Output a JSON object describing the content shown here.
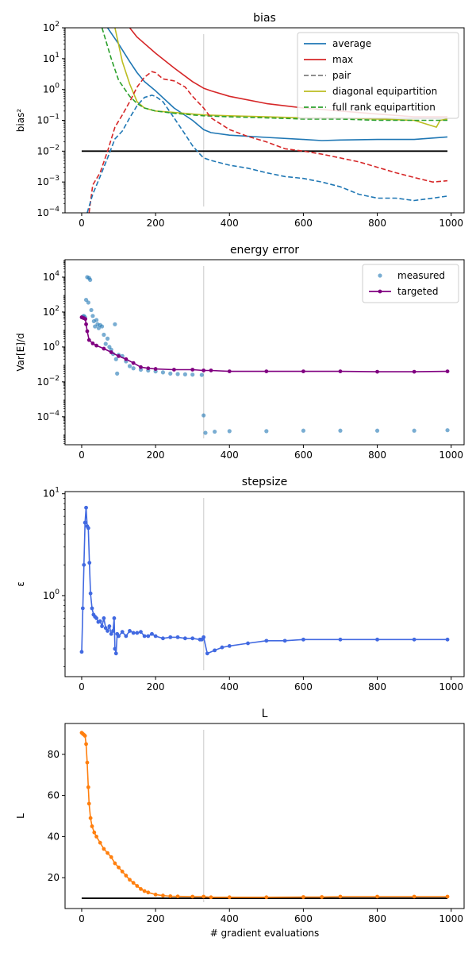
{
  "chart_data": [
    {
      "type": "line",
      "title": "bias",
      "ylabel": "bias²",
      "xlabel": "",
      "yscale": "log",
      "xlim": [
        -45,
        1035
      ],
      "ylim": [
        0.0001,
        100
      ],
      "x_ticks": [
        0,
        200,
        400,
        600,
        800,
        1000
      ],
      "y_ticks": [
        {
          "value": 0.0001,
          "base": "10",
          "exp": "−4"
        },
        {
          "value": 0.001,
          "base": "10",
          "exp": "−3"
        },
        {
          "value": 0.01,
          "base": "10",
          "exp": "−2"
        },
        {
          "value": 0.1,
          "base": "10",
          "exp": "−1"
        },
        {
          "value": 1,
          "base": "10",
          "exp": "0"
        },
        {
          "value": 10,
          "base": "10",
          "exp": "1"
        },
        {
          "value": 100,
          "base": "10",
          "exp": "2"
        }
      ],
      "vline_x": 330,
      "hline_y": 0.01,
      "legend_position": "top-right",
      "series": [
        {
          "name": "average",
          "color": "#1f77b4",
          "dash": "solid",
          "x": [
            70,
            100,
            130,
            150,
            170,
            200,
            250,
            300,
            330,
            350,
            400,
            500,
            600,
            650,
            700,
            800,
            900,
            990
          ],
          "y": [
            100,
            30,
            8,
            3.5,
            1.8,
            0.9,
            0.25,
            0.1,
            0.05,
            0.04,
            0.033,
            0.028,
            0.024,
            0.022,
            0.023,
            0.024,
            0.024,
            0.029
          ]
        },
        {
          "name": "max",
          "color": "#d62728",
          "dash": "solid",
          "x": [
            130,
            150,
            200,
            250,
            300,
            330,
            350,
            400,
            500,
            600,
            700,
            800,
            900,
            990
          ],
          "y": [
            100,
            50,
            15,
            5,
            1.8,
            1.1,
            0.9,
            0.6,
            0.35,
            0.25,
            0.2,
            0.16,
            0.13,
            0.13
          ]
        },
        {
          "name": "pair",
          "color": "#7f7f7f",
          "dash": "dashed",
          "x": [],
          "y": []
        },
        {
          "name": "diagonal equipartition",
          "color": "#bcbd22",
          "dash": "solid",
          "x": [
            90,
            110,
            130,
            150,
            170,
            200,
            250,
            300,
            330,
            400,
            500,
            600,
            700,
            800,
            900,
            960,
            970,
            990
          ],
          "y": [
            100,
            8,
            1.5,
            0.4,
            0.25,
            0.2,
            0.18,
            0.16,
            0.15,
            0.14,
            0.13,
            0.12,
            0.12,
            0.11,
            0.1,
            0.06,
            0.1,
            0.11
          ]
        },
        {
          "name": "full rank equipartition",
          "color": "#2ca02c",
          "dash": "dashed",
          "x": [
            55,
            80,
            100,
            130,
            150,
            170,
            200,
            250,
            300,
            330,
            400,
            500,
            600,
            700,
            800,
            900,
            990
          ],
          "y": [
            100,
            10,
            2,
            0.6,
            0.35,
            0.25,
            0.2,
            0.17,
            0.15,
            0.14,
            0.13,
            0.12,
            0.11,
            0.11,
            0.1,
            0.1,
            0.1
          ]
        },
        {
          "name": "",
          "color": "#d62728",
          "dash": "dashed",
          "x": [
            20,
            30,
            50,
            70,
            90,
            110,
            130,
            150,
            170,
            190,
            200,
            220,
            250,
            280,
            300,
            330,
            350,
            400,
            450,
            500,
            550,
            600,
            650,
            700,
            750,
            800,
            850,
            900,
            950,
            990
          ],
          "y": [
            0.0001,
            0.0008,
            0.002,
            0.01,
            0.06,
            0.15,
            0.4,
            1.2,
            2.5,
            3.8,
            3.5,
            2.2,
            1.9,
            1.2,
            0.6,
            0.25,
            0.12,
            0.05,
            0.03,
            0.02,
            0.012,
            0.01,
            0.008,
            0.006,
            0.0045,
            0.003,
            0.002,
            0.0014,
            0.001,
            0.0011
          ]
        },
        {
          "name": "",
          "color": "#1f77b4",
          "dash": "dashed",
          "x": [
            15,
            30,
            50,
            70,
            90,
            110,
            130,
            150,
            170,
            190,
            200,
            220,
            250,
            280,
            300,
            320,
            330,
            350,
            400,
            450,
            500,
            550,
            600,
            650,
            700,
            750,
            800,
            850,
            900,
            950,
            990
          ],
          "y": [
            0.0001,
            0.0004,
            0.0015,
            0.006,
            0.025,
            0.045,
            0.12,
            0.3,
            0.55,
            0.65,
            0.6,
            0.4,
            0.12,
            0.035,
            0.015,
            0.008,
            0.006,
            0.005,
            0.0035,
            0.0028,
            0.002,
            0.0015,
            0.0013,
            0.001,
            0.0007,
            0.0004,
            0.0003,
            0.0003,
            0.00025,
            0.0003,
            0.00035
          ]
        }
      ]
    },
    {
      "type": "scatter",
      "title": "energy error",
      "ylabel": "Var[E]/d",
      "xlabel": "",
      "yscale": "log",
      "xlim": [
        -45,
        1035
      ],
      "ylim": [
        2.5e-06,
        100000
      ],
      "x_ticks": [
        0,
        200,
        400,
        600,
        800,
        1000
      ],
      "y_ticks": [
        {
          "value": 0.0001,
          "base": "10",
          "exp": "−4"
        },
        {
          "value": 0.01,
          "base": "10",
          "exp": "−2"
        },
        {
          "value": 1,
          "base": "10",
          "exp": "0"
        },
        {
          "value": 100,
          "base": "10",
          "exp": "2"
        },
        {
          "value": 10000,
          "base": "10",
          "exp": "4"
        }
      ],
      "vline_x": 330,
      "legend_position": "top-right",
      "series": [
        {
          "name": "measured",
          "color": "#1f77b4",
          "style": "points",
          "points": [
            [
              3,
              55
            ],
            [
              6,
              60
            ],
            [
              9,
              50
            ],
            [
              12,
              500
            ],
            [
              15,
              10000
            ],
            [
              18,
              350
            ],
            [
              20,
              9000
            ],
            [
              23,
              7000
            ],
            [
              26,
              130
            ],
            [
              30,
              60
            ],
            [
              33,
              30
            ],
            [
              36,
              15
            ],
            [
              40,
              35
            ],
            [
              43,
              20
            ],
            [
              46,
              12
            ],
            [
              50,
              18
            ],
            [
              55,
              15
            ],
            [
              60,
              5
            ],
            [
              65,
              1.5
            ],
            [
              70,
              3
            ],
            [
              75,
              1
            ],
            [
              80,
              0.7
            ],
            [
              85,
              0.4
            ],
            [
              90,
              20
            ],
            [
              93,
              0.2
            ],
            [
              96,
              0.03
            ],
            [
              100,
              0.35
            ],
            [
              110,
              0.3
            ],
            [
              120,
              0.15
            ],
            [
              130,
              0.08
            ],
            [
              140,
              0.06
            ],
            [
              160,
              0.05
            ],
            [
              180,
              0.045
            ],
            [
              200,
              0.04
            ],
            [
              220,
              0.035
            ],
            [
              240,
              0.03
            ],
            [
              260,
              0.028
            ],
            [
              280,
              0.027
            ],
            [
              300,
              0.026
            ],
            [
              325,
              0.025
            ],
            [
              330,
              0.00012
            ],
            [
              335,
              1.2e-05
            ],
            [
              360,
              1.4e-05
            ],
            [
              400,
              1.5e-05
            ],
            [
              500,
              1.5e-05
            ],
            [
              600,
              1.6e-05
            ],
            [
              700,
              1.6e-05
            ],
            [
              800,
              1.6e-05
            ],
            [
              900,
              1.6e-05
            ],
            [
              990,
              1.7e-05
            ]
          ]
        },
        {
          "name": "targeted",
          "color": "#800080",
          "style": "line-marker",
          "x": [
            0,
            5,
            10,
            12,
            15,
            20,
            30,
            40,
            60,
            80,
            100,
            120,
            140,
            160,
            180,
            200,
            250,
            300,
            330,
            350,
            400,
            500,
            600,
            700,
            800,
            900,
            990
          ],
          "y": [
            50,
            45,
            40,
            20,
            8,
            2.5,
            1.6,
            1.2,
            0.8,
            0.5,
            0.3,
            0.2,
            0.12,
            0.07,
            0.06,
            0.055,
            0.05,
            0.05,
            0.045,
            0.045,
            0.04,
            0.04,
            0.04,
            0.04,
            0.038,
            0.038,
            0.04
          ]
        }
      ]
    },
    {
      "type": "line",
      "title": "stepsize",
      "ylabel": "ε",
      "xlabel": "",
      "yscale": "log",
      "xlim": [
        -45,
        1035
      ],
      "ylim": [
        0.16,
        10.5
      ],
      "x_ticks": [
        0,
        200,
        400,
        600,
        800,
        1000
      ],
      "y_ticks": [
        {
          "value": 1,
          "base": "10",
          "exp": "0"
        },
        {
          "value": 10,
          "base": "10",
          "exp": "1"
        }
      ],
      "vline_x": 330,
      "series": [
        {
          "name": "",
          "color": "#4169e1",
          "style": "line-marker",
          "x": [
            0,
            3,
            6,
            9,
            12,
            15,
            18,
            21,
            24,
            28,
            32,
            36,
            40,
            45,
            50,
            55,
            60,
            65,
            70,
            75,
            80,
            85,
            88,
            90,
            93,
            96,
            100,
            110,
            120,
            130,
            140,
            150,
            160,
            170,
            180,
            190,
            200,
            220,
            240,
            260,
            280,
            300,
            320,
            325,
            330,
            340,
            360,
            380,
            400,
            450,
            500,
            550,
            600,
            700,
            800,
            900,
            990
          ],
          "y": [
            0.28,
            0.75,
            2.0,
            5.2,
            7.3,
            4.8,
            4.6,
            2.1,
            1.05,
            0.75,
            0.65,
            0.62,
            0.6,
            0.55,
            0.56,
            0.5,
            0.6,
            0.48,
            0.45,
            0.5,
            0.42,
            0.45,
            0.6,
            0.3,
            0.27,
            0.42,
            0.4,
            0.44,
            0.4,
            0.45,
            0.43,
            0.43,
            0.44,
            0.4,
            0.4,
            0.42,
            0.4,
            0.38,
            0.39,
            0.39,
            0.38,
            0.38,
            0.37,
            0.37,
            0.39,
            0.27,
            0.29,
            0.31,
            0.32,
            0.34,
            0.36,
            0.36,
            0.37,
            0.37,
            0.37,
            0.37,
            0.37
          ]
        }
      ]
    },
    {
      "type": "line",
      "title": "L",
      "ylabel": "L",
      "xlabel": "# gradient evaluations",
      "yscale": "linear",
      "xlim": [
        -45,
        1035
      ],
      "ylim": [
        5,
        95
      ],
      "x_ticks": [
        0,
        200,
        400,
        600,
        800,
        1000
      ],
      "y_ticks": [
        {
          "value": 20,
          "label": "20"
        },
        {
          "value": 40,
          "label": "40"
        },
        {
          "value": 60,
          "label": "60"
        },
        {
          "value": 80,
          "label": "80"
        }
      ],
      "vline_x": 330,
      "hline_y": 10,
      "series": [
        {
          "name": "",
          "color": "#ff7f0e",
          "style": "line-marker",
          "x": [
            0,
            3,
            6,
            9,
            12,
            15,
            18,
            20,
            24,
            28,
            34,
            40,
            50,
            60,
            70,
            80,
            90,
            100,
            110,
            120,
            130,
            140,
            150,
            160,
            170,
            180,
            200,
            220,
            240,
            260,
            300,
            330,
            350,
            400,
            500,
            600,
            650,
            700,
            800,
            900,
            990
          ],
          "y": [
            90.5,
            90,
            89.5,
            89,
            85,
            76,
            64,
            56,
            49,
            45,
            42,
            40,
            37,
            34,
            32,
            30,
            27,
            25,
            23,
            21,
            19,
            17.5,
            16,
            14.5,
            13.5,
            12.8,
            11.8,
            11.3,
            11,
            10.9,
            10.8,
            10.8,
            10.5,
            10.5,
            10.5,
            10.6,
            10.6,
            10.8,
            10.8,
            10.8,
            10.8
          ]
        }
      ]
    }
  ]
}
